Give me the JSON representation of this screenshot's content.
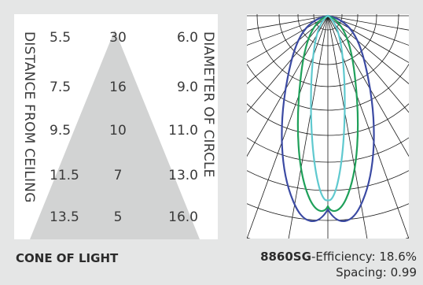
{
  "cone": {
    "left_label": "DISTANCE FROM CEILING",
    "right_label": "DIAMETER OF CIRCLE",
    "rows": [
      {
        "distance": "5.5",
        "footcandles": "30",
        "diameter": "6.0"
      },
      {
        "distance": "7.5",
        "footcandles": "16",
        "diameter": "9.0"
      },
      {
        "distance": "9.5",
        "footcandles": "10",
        "diameter": "11.0"
      },
      {
        "distance": "11.5",
        "footcandles": "7",
        "diameter": "13.0"
      },
      {
        "distance": "13.5",
        "footcandles": "5",
        "diameter": "16.0"
      }
    ],
    "caption": "CONE OF LIGHT"
  },
  "photometric": {
    "model": "8860SG",
    "separator": "-",
    "efficiency": "Efficiency: 18.6%",
    "spacing": "Spacing: 0.99"
  },
  "colors": {
    "background": "#e5e6e6",
    "cone": "#d2d3d3",
    "curve_outer": "#3b4aa3",
    "curve_mid": "#1fa05a",
    "curve_inner": "#5fc9cf"
  }
}
